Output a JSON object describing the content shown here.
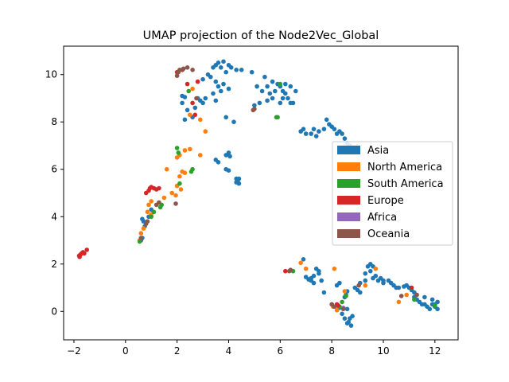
{
  "chart_data": {
    "type": "scatter",
    "title": "UMAP projection of the Node2Vec_Global",
    "xlabel": "",
    "ylabel": "",
    "xlim": [
      -2.4,
      12.9
    ],
    "ylim": [
      -1.2,
      11.2
    ],
    "xticks": [
      -2,
      0,
      2,
      4,
      6,
      8,
      10,
      12
    ],
    "yticks": [
      0,
      2,
      4,
      6,
      8,
      10
    ],
    "xtick_labels": [
      "−2",
      "0",
      "2",
      "4",
      "6",
      "8",
      "10",
      "12"
    ],
    "ytick_labels": [
      "0",
      "2",
      "4",
      "6",
      "8",
      "10"
    ],
    "grid": false,
    "legend_position": "center-right",
    "series": [
      {
        "name": "Asia",
        "color": "#1f77b4",
        "points": [
          [
            2.2,
            9.1
          ],
          [
            2.3,
            9.05
          ],
          [
            2.2,
            8.8
          ],
          [
            2.4,
            8.5
          ],
          [
            2.6,
            8.2
          ],
          [
            2.3,
            8.1
          ],
          [
            2.7,
            8.6
          ],
          [
            2.9,
            8.9
          ],
          [
            2.8,
            9.0
          ],
          [
            3.0,
            9.8
          ],
          [
            3.2,
            10.0
          ],
          [
            3.4,
            10.3
          ],
          [
            3.5,
            10.4
          ],
          [
            3.6,
            10.5
          ],
          [
            3.8,
            10.55
          ],
          [
            3.7,
            10.3
          ],
          [
            3.3,
            9.9
          ],
          [
            3.5,
            9.7
          ],
          [
            3.6,
            9.5
          ],
          [
            3.7,
            9.3
          ],
          [
            3.4,
            9.2
          ],
          [
            3.5,
            8.9
          ],
          [
            3.8,
            9.6
          ],
          [
            3.9,
            10.1
          ],
          [
            4.0,
            10.4
          ],
          [
            4.1,
            10.3
          ],
          [
            4.3,
            10.2
          ],
          [
            3.1,
            9.0
          ],
          [
            3.0,
            8.8
          ],
          [
            4.0,
            9.4
          ],
          [
            3.9,
            8.2
          ],
          [
            4.2,
            8.0
          ],
          [
            4.5,
            10.2
          ],
          [
            4.9,
            10.1
          ],
          [
            5.1,
            9.5
          ],
          [
            5.3,
            9.3
          ],
          [
            5.5,
            9.5
          ],
          [
            5.6,
            9.2
          ],
          [
            5.7,
            9.0
          ],
          [
            5.5,
            8.9
          ],
          [
            5.8,
            9.3
          ],
          [
            5.9,
            9.6
          ],
          [
            6.0,
            9.5
          ],
          [
            6.1,
            9.3
          ],
          [
            6.2,
            9.2
          ],
          [
            6.3,
            9.0
          ],
          [
            6.4,
            8.8
          ],
          [
            5.4,
            9.9
          ],
          [
            5.7,
            9.7
          ],
          [
            6.2,
            9.6
          ],
          [
            6.4,
            9.5
          ],
          [
            6.6,
            9.3
          ],
          [
            6.0,
            8.8
          ],
          [
            6.1,
            9.0
          ],
          [
            6.5,
            8.8
          ],
          [
            5.0,
            8.7
          ],
          [
            5.2,
            8.8
          ],
          [
            6.8,
            7.6
          ],
          [
            6.9,
            7.7
          ],
          [
            7.0,
            7.5
          ],
          [
            7.2,
            7.5
          ],
          [
            7.3,
            7.7
          ],
          [
            7.5,
            7.6
          ],
          [
            7.4,
            7.4
          ],
          [
            7.7,
            7.7
          ],
          [
            7.8,
            8.1
          ],
          [
            7.9,
            7.9
          ],
          [
            8.0,
            7.8
          ],
          [
            8.1,
            7.7
          ],
          [
            8.2,
            7.5
          ],
          [
            8.4,
            7.5
          ],
          [
            8.5,
            7.3
          ],
          [
            8.6,
            7.1
          ],
          [
            8.7,
            7.0
          ],
          [
            8.3,
            7.6
          ],
          [
            3.5,
            6.4
          ],
          [
            3.6,
            6.3
          ],
          [
            3.9,
            6.6
          ],
          [
            4.0,
            6.7
          ],
          [
            4.05,
            6.55
          ],
          [
            3.9,
            6.0
          ],
          [
            4.0,
            5.95
          ],
          [
            4.3,
            5.6
          ],
          [
            4.35,
            5.5
          ],
          [
            4.4,
            5.4
          ],
          [
            4.3,
            5.45
          ],
          [
            4.4,
            5.6
          ],
          [
            0.6,
            3.0
          ],
          [
            0.65,
            3.1
          ],
          [
            0.7,
            3.8
          ],
          [
            0.65,
            3.9
          ],
          [
            0.75,
            3.6
          ],
          [
            0.9,
            4.0
          ],
          [
            1.0,
            4.3
          ],
          [
            6.9,
            2.2
          ],
          [
            7.0,
            1.45
          ],
          [
            7.1,
            1.35
          ],
          [
            7.2,
            1.4
          ],
          [
            7.3,
            1.5
          ],
          [
            7.5,
            1.6
          ],
          [
            7.6,
            1.3
          ],
          [
            7.5,
            1.7
          ],
          [
            7.3,
            1.2
          ],
          [
            7.2,
            1.3
          ],
          [
            7.4,
            1.8
          ],
          [
            7.7,
            0.8
          ],
          [
            8.0,
            0.3
          ],
          [
            8.3,
            0.15
          ],
          [
            8.4,
            -0.1
          ],
          [
            8.5,
            -0.3
          ],
          [
            8.6,
            -0.5
          ],
          [
            8.65,
            -0.45
          ],
          [
            8.7,
            -0.3
          ],
          [
            8.8,
            -0.2
          ],
          [
            8.75,
            -0.6
          ],
          [
            8.6,
            0.1
          ],
          [
            8.55,
            0.7
          ],
          [
            8.6,
            0.85
          ],
          [
            8.5,
            0.6
          ],
          [
            8.2,
            1.1
          ],
          [
            8.3,
            1.2
          ],
          [
            8.9,
            1.0
          ],
          [
            9.0,
            0.9
          ],
          [
            9.1,
            0.8
          ],
          [
            9.1,
            1.2
          ],
          [
            9.3,
            1.6
          ],
          [
            9.4,
            1.9
          ],
          [
            9.5,
            1.7
          ],
          [
            9.6,
            1.4
          ],
          [
            9.7,
            1.5
          ],
          [
            9.8,
            1.3
          ],
          [
            9.9,
            1.4
          ],
          [
            10.0,
            1.3
          ],
          [
            10.2,
            1.3
          ],
          [
            10.3,
            1.2
          ],
          [
            10.4,
            1.1
          ],
          [
            10.5,
            1.0
          ],
          [
            10.6,
            1.0
          ],
          [
            10.8,
            1.05
          ],
          [
            10.9,
            1.1
          ],
          [
            11.0,
            1.0
          ],
          [
            11.1,
            0.9
          ],
          [
            11.2,
            0.6
          ],
          [
            11.3,
            0.5
          ],
          [
            11.4,
            0.4
          ],
          [
            11.5,
            0.3
          ],
          [
            11.6,
            0.3
          ],
          [
            11.7,
            0.2
          ],
          [
            11.8,
            0.1
          ],
          [
            11.9,
            0.3
          ],
          [
            12.0,
            0.3
          ],
          [
            12.1,
            0.4
          ],
          [
            11.9,
            0.5
          ],
          [
            12.0,
            0.2
          ],
          [
            12.1,
            0.1
          ],
          [
            11.6,
            0.6
          ],
          [
            11.2,
            0.8
          ],
          [
            9.5,
            2.0
          ],
          [
            9.3,
            1.3
          ],
          [
            10.0,
            1.2
          ],
          [
            9.6,
            1.9
          ]
        ]
      },
      {
        "name": "North America",
        "color": "#ff7f0e",
        "points": [
          [
            2.0,
            6.5
          ],
          [
            2.1,
            6.6
          ],
          [
            1.6,
            6.0
          ],
          [
            2.2,
            5.9
          ],
          [
            2.3,
            5.85
          ],
          [
            2.1,
            5.7
          ],
          [
            2.0,
            5.3
          ],
          [
            2.15,
            5.15
          ],
          [
            1.8,
            5.0
          ],
          [
            1.95,
            4.9
          ],
          [
            1.5,
            4.8
          ],
          [
            1.0,
            4.65
          ],
          [
            0.9,
            4.5
          ],
          [
            0.85,
            4.2
          ],
          [
            1.0,
            4.1
          ],
          [
            0.7,
            3.5
          ],
          [
            0.6,
            3.3
          ],
          [
            0.55,
            3.0
          ],
          [
            2.3,
            6.8
          ],
          [
            2.5,
            6.85
          ],
          [
            2.9,
            8.1
          ],
          [
            3.1,
            7.6
          ],
          [
            2.9,
            6.6
          ],
          [
            2.6,
            9.4
          ],
          [
            2.5,
            8.3
          ],
          [
            6.8,
            2.05
          ],
          [
            7.0,
            1.8
          ],
          [
            8.1,
            1.8
          ],
          [
            8.05,
            0.2
          ],
          [
            8.2,
            0.05
          ],
          [
            8.5,
            0.85
          ],
          [
            9.3,
            1.1
          ],
          [
            9.7,
            1.8
          ],
          [
            10.9,
            0.7
          ],
          [
            10.6,
            0.4
          ],
          [
            8.25,
            0.2
          ]
        ]
      },
      {
        "name": "South America",
        "color": "#2ca02c",
        "points": [
          [
            2.05,
            6.7
          ],
          [
            2.0,
            6.9
          ],
          [
            2.45,
            9.3
          ],
          [
            2.55,
            5.9
          ],
          [
            2.6,
            6.0
          ],
          [
            2.1,
            5.4
          ],
          [
            1.4,
            4.5
          ],
          [
            1.35,
            4.4
          ],
          [
            1.1,
            4.2
          ],
          [
            1.0,
            4.0
          ],
          [
            0.55,
            2.95
          ],
          [
            5.9,
            8.2
          ],
          [
            6.0,
            9.6
          ],
          [
            6.5,
            1.7
          ],
          [
            8.55,
            0.65
          ],
          [
            8.3,
            0.2
          ],
          [
            8.4,
            0.4
          ],
          [
            11.2,
            0.5
          ],
          [
            12.0,
            0.25
          ],
          [
            5.85,
            8.2
          ]
        ]
      },
      {
        "name": "Europe",
        "color": "#d62728",
        "points": [
          [
            -1.8,
            2.35
          ],
          [
            -1.75,
            2.4
          ],
          [
            -1.7,
            2.45
          ],
          [
            -1.65,
            2.5
          ],
          [
            -1.6,
            2.45
          ],
          [
            -1.5,
            2.6
          ],
          [
            -1.78,
            2.3
          ],
          [
            0.9,
            5.1
          ],
          [
            0.95,
            5.2
          ],
          [
            1.0,
            5.25
          ],
          [
            1.1,
            5.2
          ],
          [
            1.2,
            5.15
          ],
          [
            1.3,
            5.2
          ],
          [
            0.8,
            5.0
          ],
          [
            2.0,
            10.1
          ],
          [
            2.2,
            10.2
          ],
          [
            2.4,
            9.6
          ],
          [
            2.8,
            9.7
          ],
          [
            2.6,
            8.8
          ],
          [
            2.7,
            8.3
          ],
          [
            6.2,
            1.7
          ],
          [
            8.2,
            0.3
          ],
          [
            11.1,
            1.0
          ],
          [
            8.25,
            0.25
          ]
        ]
      },
      {
        "name": "Africa",
        "color": "#9467bd",
        "points": [
          [
            8.45,
            0.15
          ]
        ]
      },
      {
        "name": "Oceania",
        "color": "#8c564b",
        "points": [
          [
            2.0,
            9.95
          ],
          [
            2.05,
            10.1
          ],
          [
            2.1,
            10.2
          ],
          [
            2.25,
            10.25
          ],
          [
            2.4,
            10.3
          ],
          [
            2.6,
            10.2
          ],
          [
            2.75,
            9.0
          ],
          [
            1.95,
            4.55
          ],
          [
            1.2,
            4.5
          ],
          [
            1.3,
            4.6
          ],
          [
            0.85,
            3.8
          ],
          [
            0.8,
            3.7
          ],
          [
            0.6,
            3.1
          ],
          [
            4.95,
            8.5
          ],
          [
            5.0,
            8.55
          ],
          [
            6.35,
            1.7
          ],
          [
            6.4,
            1.75
          ],
          [
            8.0,
            0.3
          ],
          [
            8.1,
            0.2
          ],
          [
            8.45,
            0.1
          ],
          [
            9.05,
            1.1
          ],
          [
            10.7,
            0.65
          ],
          [
            11.3,
            0.7
          ]
        ]
      }
    ]
  }
}
